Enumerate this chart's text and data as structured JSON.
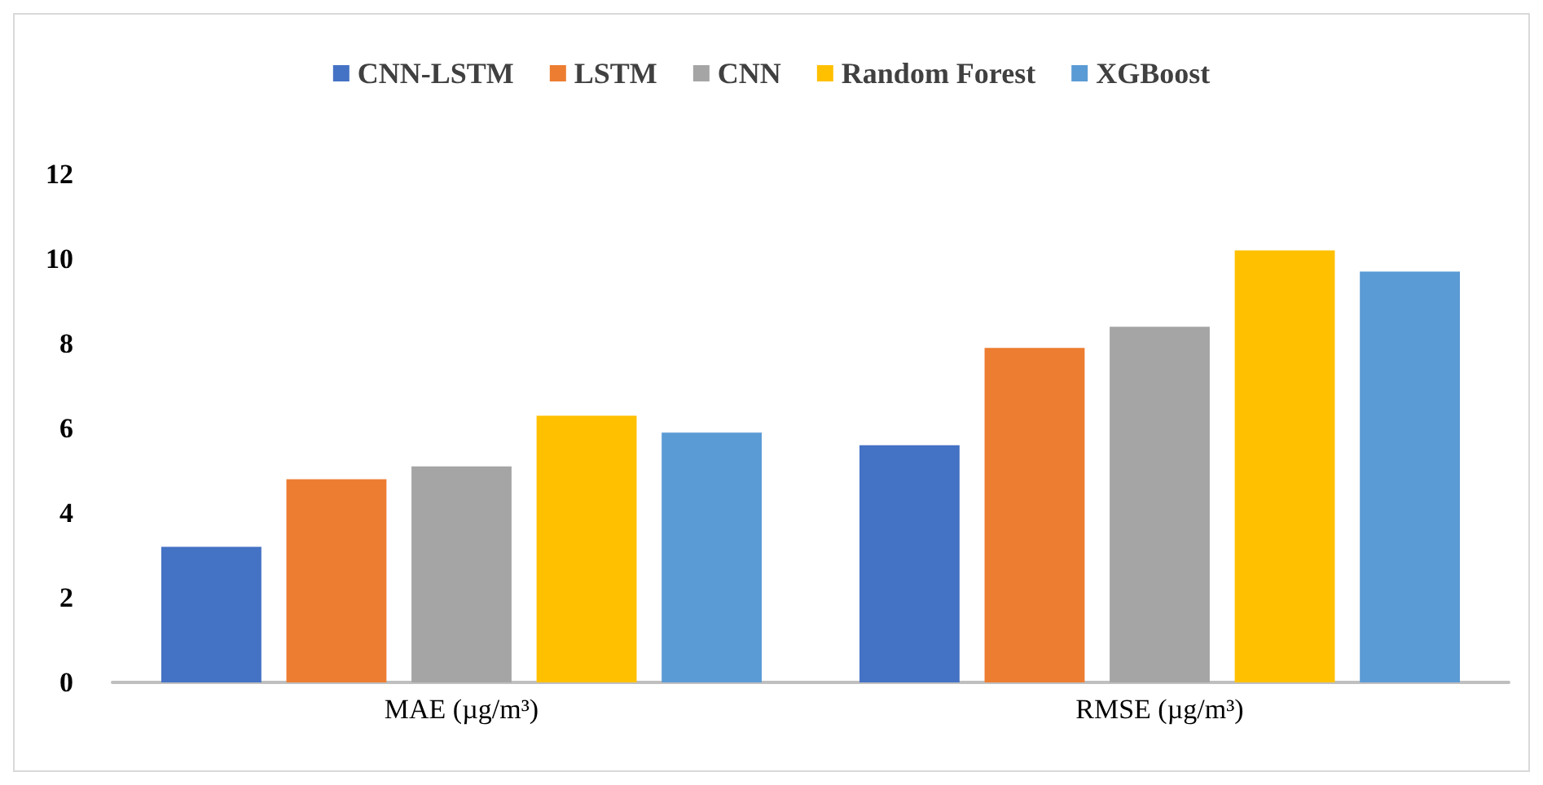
{
  "chart_data": {
    "type": "bar",
    "categories": [
      "MAE (µg/m³)",
      "RMSE (µg/m³)"
    ],
    "series": [
      {
        "name": "CNN-LSTM",
        "color": "#4472c4",
        "values": [
          3.2,
          5.6
        ]
      },
      {
        "name": "LSTM",
        "color": "#ed7d31",
        "values": [
          4.8,
          7.9
        ]
      },
      {
        "name": "CNN",
        "color": "#a5a5a5",
        "values": [
          5.1,
          8.4
        ]
      },
      {
        "name": "Random Forest",
        "color": "#ffc000",
        "values": [
          6.3,
          10.2
        ]
      },
      {
        "name": "XGBoost",
        "color": "#5b9bd5",
        "values": [
          5.9,
          9.7
        ]
      }
    ],
    "ylim": [
      0,
      12
    ],
    "yticks": [
      0,
      2,
      4,
      6,
      8,
      10,
      12
    ],
    "grid": false,
    "legend": "top"
  }
}
